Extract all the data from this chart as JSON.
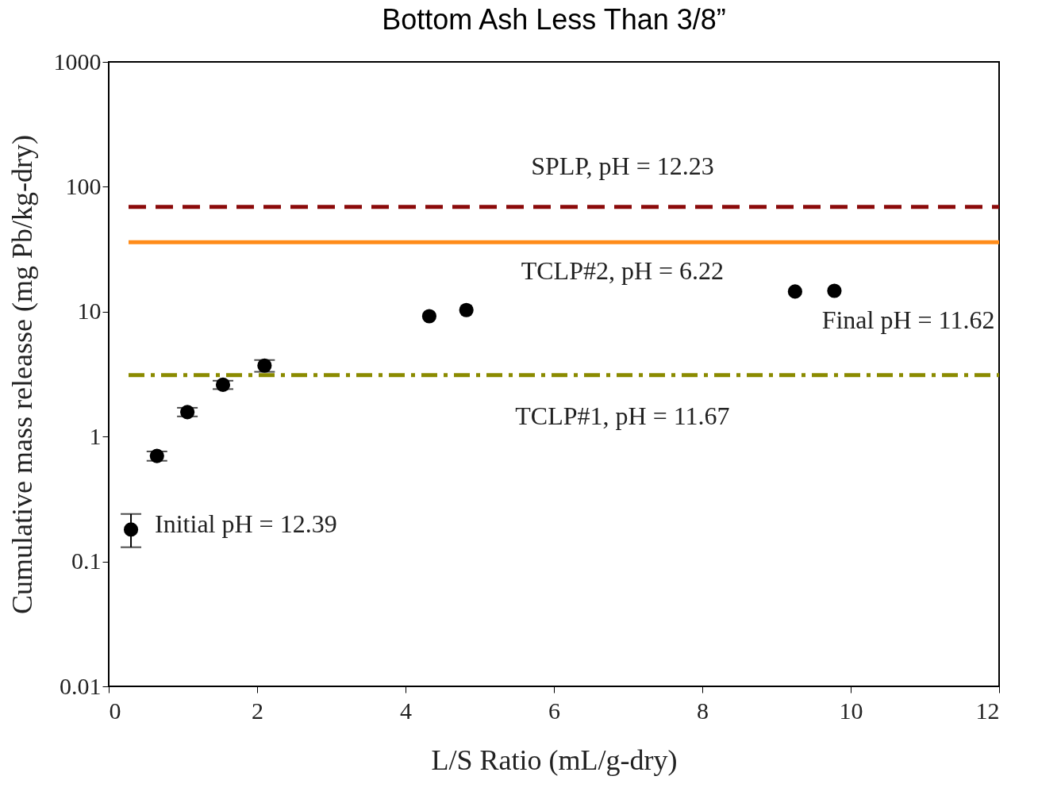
{
  "chart_data": {
    "type": "scatter",
    "title": "Bottom Ash Less Than 3/8”",
    "xlabel": "L/S Ratio (mL/g-dry)",
    "ylabel": "Cumulative mass releasse (mg Pb/kg-dry)",
    "x": [
      0.3,
      0.65,
      1.06,
      1.54,
      2.1,
      4.32,
      4.82,
      9.25,
      9.78
    ],
    "values": [
      0.18,
      0.7,
      1.57,
      2.6,
      3.7,
      9.2,
      10.3,
      14.5,
      14.7
    ],
    "errors": [
      [
        0.13,
        0.24
      ],
      [
        0.64,
        0.76
      ],
      [
        1.45,
        1.7
      ],
      [
        2.4,
        2.8
      ],
      [
        3.3,
        4.1
      ],
      null,
      null,
      null,
      null
    ],
    "color": "#000000",
    "marker": "circle",
    "xlim": [
      0,
      12
    ],
    "xticks": [
      0,
      2,
      4,
      6,
      8,
      10,
      12
    ],
    "ylim": [
      0.01,
      1000
    ],
    "yticks": [
      0.01,
      0.1,
      1,
      10,
      100,
      1000
    ],
    "log": "y",
    "grid": false,
    "ref_lines": [
      {
        "axis": "y",
        "value": 69,
        "color": "#8b0a0a",
        "line_style": "dashed"
      },
      {
        "axis": "y",
        "value": 36,
        "color": "#ff8c1a",
        "line_style": "solid"
      },
      {
        "axis": "y",
        "value": 3.1,
        "color": "#8b8b00",
        "line_style": "dashdot"
      }
    ],
    "annotations": [
      "SPLP, pH = 12.23",
      "TCLP#2, pH = 6.22",
      "TCLP#1, pH = 11.67",
      {
        "text": "Initial pH = 12.39",
        "x": 0.3,
        "y": 0.18
      },
      {
        "text": "Final pH = 11.62",
        "x": 9.78,
        "y": 14.7
      }
    ]
  }
}
